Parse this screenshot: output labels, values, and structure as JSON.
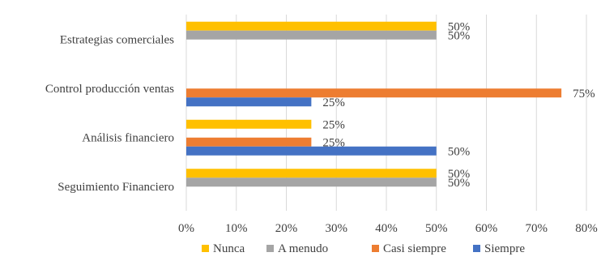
{
  "chart_data": {
    "type": "bar",
    "orientation": "horizontal",
    "categories": [
      "Estrategias comerciales",
      "Control producción ventas",
      "Análisis financiero",
      "Seguimiento Financiero"
    ],
    "series": [
      {
        "name": "Nunca",
        "color": "#FFC000",
        "values": [
          50,
          null,
          25,
          50
        ],
        "labels": [
          "50%",
          "",
          "25%",
          "50%"
        ]
      },
      {
        "name": "A menudo",
        "color": "#A5A5A5",
        "values": [
          50,
          null,
          null,
          50
        ],
        "labels": [
          "50%",
          "",
          "",
          "50%"
        ]
      },
      {
        "name": "Casi siempre",
        "color": "#ED7D31",
        "values": [
          null,
          75,
          25,
          null
        ],
        "labels": [
          "",
          "75%",
          "25%",
          ""
        ]
      },
      {
        "name": "Siempre",
        "color": "#4472C4",
        "values": [
          null,
          25,
          50,
          null
        ],
        "labels": [
          "",
          "25%",
          "50%",
          ""
        ]
      }
    ],
    "xlim": [
      0,
      80
    ],
    "xticks": [
      0,
      10,
      20,
      30,
      40,
      50,
      60,
      70,
      80
    ],
    "xtick_labels": [
      "0%",
      "10%",
      "20%",
      "30%",
      "40%",
      "50%",
      "60%",
      "70%",
      "80%"
    ],
    "grid": true,
    "legend": "bottom"
  }
}
